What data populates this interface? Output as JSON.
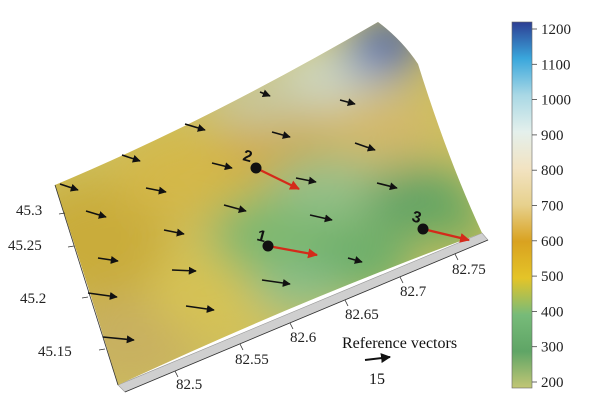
{
  "map": {
    "axes": {
      "lat_ticks": [
        "45.3",
        "45.25",
        "45.2",
        "45.15"
      ],
      "lon_ticks": [
        "82.5",
        "82.55",
        "82.6",
        "82.65",
        "82.7",
        "82.75"
      ]
    },
    "sites": [
      {
        "label": "1"
      },
      {
        "label": "2"
      },
      {
        "label": "3"
      }
    ],
    "reference": {
      "title": "Reference vectors",
      "value": "15"
    }
  },
  "colorbar": {
    "min": 200,
    "max": 1200,
    "ticks": [
      "200",
      "300",
      "400",
      "500",
      "600",
      "700",
      "800",
      "900",
      "1000",
      "1100",
      "1200"
    ],
    "stops": [
      {
        "value": 200,
        "color": "#c2c675"
      },
      {
        "value": 300,
        "color": "#5fa566"
      },
      {
        "value": 400,
        "color": "#77bb79"
      },
      {
        "value": 500,
        "color": "#e4c428"
      },
      {
        "value": 600,
        "color": "#d9a220"
      },
      {
        "value": 700,
        "color": "#e7d18d"
      },
      {
        "value": 800,
        "color": "#f2e3c2"
      },
      {
        "value": 900,
        "color": "#e4f0ec"
      },
      {
        "value": 1000,
        "color": "#a9d8e5"
      },
      {
        "value": 1100,
        "color": "#3aa7dc"
      },
      {
        "value": 1200,
        "color": "#2d3e93"
      }
    ]
  },
  "colors": {
    "wind_arrow": "#111111",
    "site_arrow": "#d42a1a",
    "site_marker": "#111111"
  }
}
